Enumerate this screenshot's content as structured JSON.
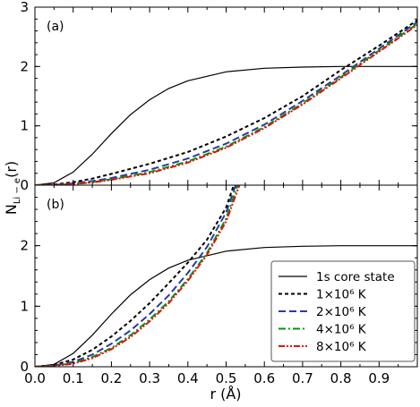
{
  "chart_data": {
    "type": "line",
    "ylabel": "N",
    "ylabel_sub": "Li − e",
    "ylabel_tail": "(r)",
    "xlabel": "r (Å)",
    "xlim": [
      0.0,
      1.0
    ],
    "x_ticks": [
      "0.0",
      "0.1",
      "0.2",
      "0.3",
      "0.4",
      "0.5",
      "0.6",
      "0.7",
      "0.8",
      "0.9"
    ],
    "x_tick_values": [
      0.0,
      0.1,
      0.2,
      0.3,
      0.4,
      0.5,
      0.6,
      0.7,
      0.8,
      0.9
    ],
    "legend_placement": "lower-right of panel (b)",
    "panels": [
      {
        "label": "(a)",
        "ylim": [
          0,
          3
        ],
        "y_ticks": [
          "0",
          "1",
          "2",
          "3"
        ],
        "y_tick_values": [
          0,
          1,
          2,
          3
        ],
        "series": [
          {
            "name": "1s core state",
            "color": "#000000",
            "dash": "solid",
            "x": [
              0,
              0.05,
              0.1,
              0.15,
              0.2,
              0.25,
              0.3,
              0.35,
              0.4,
              0.5,
              0.6,
              0.7,
              0.8,
              0.9,
              1.0
            ],
            "y": [
              0,
              0.04,
              0.22,
              0.52,
              0.87,
              1.19,
              1.44,
              1.63,
              1.76,
              1.91,
              1.97,
              1.99,
              2.0,
              2.0,
              2.0
            ]
          },
          {
            "name": "1×10⁶ K",
            "color": "#000000",
            "dash": "short",
            "x": [
              0,
              0.05,
              0.1,
              0.15,
              0.2,
              0.3,
              0.4,
              0.5,
              0.6,
              0.7,
              0.8,
              0.9,
              1.0
            ],
            "y": [
              0,
              0.01,
              0.05,
              0.11,
              0.19,
              0.36,
              0.56,
              0.82,
              1.13,
              1.5,
              1.94,
              2.35,
              2.78
            ]
          },
          {
            "name": "2×10⁶ K",
            "color": "#2b3aa0",
            "dash": "long",
            "x": [
              0,
              0.05,
              0.1,
              0.15,
              0.2,
              0.3,
              0.4,
              0.5,
              0.6,
              0.7,
              0.8,
              0.9,
              1.0
            ],
            "y": [
              0,
              0.005,
              0.03,
              0.07,
              0.12,
              0.26,
              0.45,
              0.7,
              1.02,
              1.42,
              1.85,
              2.3,
              2.75
            ]
          },
          {
            "name": "4×10⁶ K",
            "color": "#009900",
            "dash": "dashdot",
            "x": [
              0,
              0.05,
              0.1,
              0.15,
              0.2,
              0.3,
              0.4,
              0.5,
              0.6,
              0.7,
              0.8,
              0.9,
              1.0
            ],
            "y": [
              0,
              0.004,
              0.02,
              0.05,
              0.1,
              0.22,
              0.4,
              0.65,
              0.98,
              1.38,
              1.82,
              2.27,
              2.72
            ]
          },
          {
            "name": "8×10⁶ K",
            "color": "#dd1111",
            "dash": "dashdotdot",
            "x": [
              0,
              0.05,
              0.1,
              0.15,
              0.2,
              0.3,
              0.4,
              0.5,
              0.6,
              0.7,
              0.8,
              0.9,
              1.0
            ],
            "y": [
              0,
              0.003,
              0.018,
              0.045,
              0.09,
              0.2,
              0.38,
              0.63,
              0.96,
              1.36,
              1.8,
              2.25,
              2.7
            ]
          }
        ]
      },
      {
        "label": "(b)",
        "ylim": [
          0,
          3
        ],
        "y_ticks": [
          "0",
          "1",
          "2"
        ],
        "y_tick_values": [
          0,
          1,
          2
        ],
        "series": [
          {
            "name": "1s core state",
            "color": "#000000",
            "dash": "solid",
            "x": [
              0,
              0.05,
              0.1,
              0.15,
              0.2,
              0.25,
              0.3,
              0.35,
              0.4,
              0.5,
              0.6,
              0.7,
              0.8,
              0.9,
              1.0
            ],
            "y": [
              0,
              0.04,
              0.22,
              0.52,
              0.87,
              1.19,
              1.44,
              1.63,
              1.76,
              1.91,
              1.97,
              1.99,
              2.0,
              2.0,
              2.0
            ]
          },
          {
            "name": "1×10⁶ K",
            "color": "#000000",
            "dash": "short",
            "x": [
              0,
              0.05,
              0.1,
              0.15,
              0.2,
              0.25,
              0.3,
              0.35,
              0.4,
              0.45,
              0.5,
              0.52
            ],
            "y": [
              0,
              0.03,
              0.12,
              0.28,
              0.5,
              0.76,
              1.05,
              1.38,
              1.72,
              2.1,
              2.63,
              3.0
            ]
          },
          {
            "name": "2×10⁶ K",
            "color": "#2b3aa0",
            "dash": "long",
            "x": [
              0,
              0.05,
              0.1,
              0.15,
              0.2,
              0.25,
              0.3,
              0.35,
              0.4,
              0.45,
              0.5,
              0.525
            ],
            "y": [
              0,
              0.02,
              0.08,
              0.2,
              0.38,
              0.6,
              0.87,
              1.18,
              1.55,
              1.98,
              2.55,
              3.0
            ]
          },
          {
            "name": "4×10⁶ K",
            "color": "#009900",
            "dash": "dashdot",
            "x": [
              0,
              0.05,
              0.1,
              0.15,
              0.2,
              0.25,
              0.3,
              0.35,
              0.4,
              0.45,
              0.5,
              0.53
            ],
            "y": [
              0,
              0.015,
              0.06,
              0.16,
              0.31,
              0.52,
              0.78,
              1.08,
              1.45,
              1.88,
              2.45,
              3.0
            ]
          },
          {
            "name": "8×10⁶ K",
            "color": "#dd1111",
            "dash": "dashdotdot",
            "x": [
              0,
              0.05,
              0.1,
              0.15,
              0.2,
              0.25,
              0.3,
              0.35,
              0.4,
              0.45,
              0.5,
              0.535
            ],
            "y": [
              0,
              0.012,
              0.05,
              0.14,
              0.29,
              0.49,
              0.75,
              1.05,
              1.42,
              1.85,
              2.4,
              3.0
            ]
          }
        ]
      }
    ],
    "legend": [
      {
        "label": "1s core state",
        "color": "#000000",
        "dash": "solid"
      },
      {
        "label": "1×10⁶ K",
        "color": "#000000",
        "dash": "short"
      },
      {
        "label": "2×10⁶ K",
        "color": "#2b3aa0",
        "dash": "long"
      },
      {
        "label": "4×10⁶ K",
        "color": "#009900",
        "dash": "dashdot"
      },
      {
        "label": "8×10⁶ K",
        "color": "#dd1111",
        "dash": "dashdotdot"
      }
    ]
  }
}
